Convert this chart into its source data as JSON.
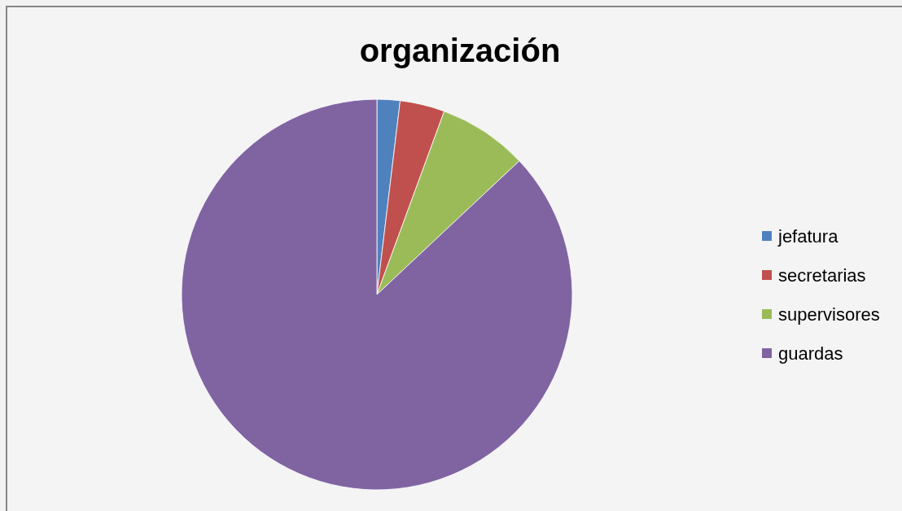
{
  "chart_data": {
    "type": "pie",
    "title": "organización",
    "categories": [
      "jefatura",
      "secretarias",
      "supervisores",
      "guardas"
    ],
    "values": [
      1.9,
      3.7,
      7.4,
      87.0
    ],
    "colors": [
      "#4f81bd",
      "#c0504d",
      "#9bbb59",
      "#8064a2"
    ],
    "legend": "right"
  }
}
